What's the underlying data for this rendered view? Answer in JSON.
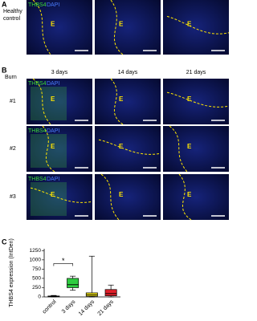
{
  "panel_a": {
    "letter": "A",
    "row_label": [
      "Healthy",
      "control"
    ],
    "stain": [
      "THBS4",
      "DAPI"
    ],
    "region_labels": [
      "E",
      "E",
      "E"
    ]
  },
  "panel_b": {
    "letter": "B",
    "group_label": "Burn",
    "columns": [
      "3 days",
      "14 days",
      "21 days"
    ],
    "rows": [
      "#1",
      "#2",
      "#3"
    ],
    "stain": [
      "THBS4",
      "DAPI"
    ],
    "region_labels": [
      [
        "E",
        "E",
        "E"
      ],
      [
        "E",
        "E",
        "E"
      ],
      [
        "E",
        "E",
        "E"
      ]
    ]
  },
  "panel_c": {
    "letter": "C"
  },
  "chart_data": {
    "type": "box",
    "ylabel": "THBS4 expression (IntDen)",
    "categories": [
      "control",
      "3 days",
      "14 days",
      "21 days"
    ],
    "colors": [
      "#3a5fcd",
      "#2ecc40",
      "#f5e614",
      "#e0202a"
    ],
    "min": [
      0,
      180,
      0,
      0
    ],
    "q1": [
      5,
      250,
      20,
      30
    ],
    "median": [
      15,
      330,
      60,
      90
    ],
    "q3": [
      25,
      500,
      110,
      200
    ],
    "max": [
      40,
      560,
      1100,
      320
    ],
    "ylim": [
      0,
      1300
    ],
    "yticks": [
      0,
      250,
      500,
      750,
      1000,
      1250
    ],
    "annotation": {
      "text": "*",
      "between": [
        "control",
        "3 days"
      ],
      "y": 900
    }
  }
}
